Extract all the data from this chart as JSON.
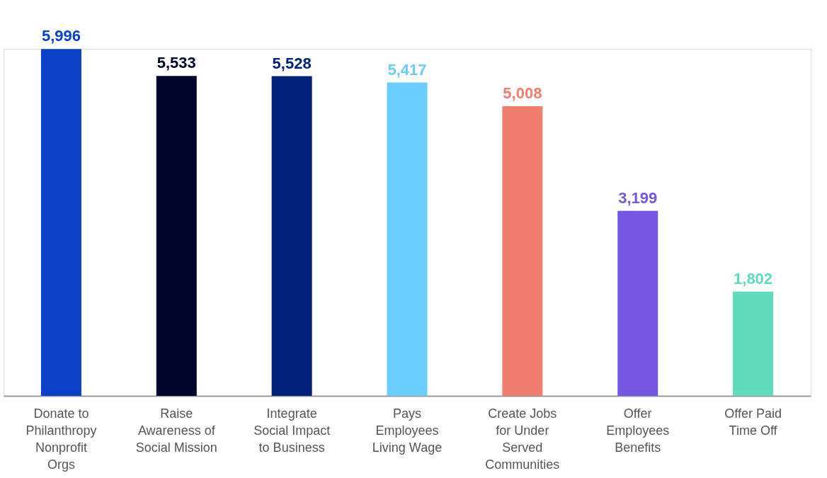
{
  "chart_data": {
    "type": "bar",
    "categories": [
      "Donate to\nPhilanthropy\nNonprofit\nOrgs",
      "Raise\nAwareness of\nSocial Mission",
      "Integrate\nSocial Impact\nto Business",
      "Pays\nEmployees\nLiving Wage",
      "Create Jobs\nfor Under\nServed\nCommunities",
      "Offer\nEmployees\nBenefits",
      "Offer Paid\nTime Off"
    ],
    "values": [
      5996,
      5533,
      5528,
      5417,
      5008,
      3199,
      1802
    ],
    "colors": [
      "#0b41c8",
      "#00052b",
      "#01217a",
      "#6acdff",
      "#f07e6e",
      "#7657e4",
      "#5fdbbe"
    ],
    "value_labels": [
      "5,996",
      "5,533",
      "5,528",
      "5,417",
      "5,008",
      "3,199",
      "1,802"
    ]
  }
}
